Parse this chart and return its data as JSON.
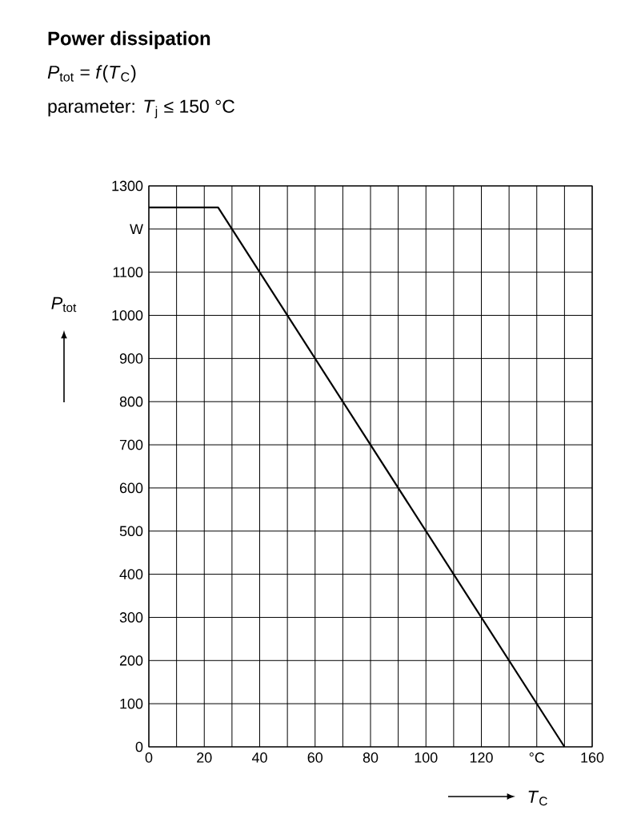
{
  "chart_data": {
    "type": "line",
    "title": "Power dissipation",
    "subtitle": "*P*$_{tot}$ = *f*(*T*$_{C}$)",
    "annotations": [
      "parameter: *T*$_{j}$ ≤ 150 °C"
    ],
    "xlabel": "*T*$_{C}$",
    "ylabel": "*P*$_{tot}$",
    "series": [
      {
        "color": "#000000",
        "x": [
          0,
          25,
          150
        ],
        "values": [
          1250,
          1250,
          0
        ]
      }
    ],
    "xlim": [
      0,
      160
    ],
    "ylim": [
      0,
      1300
    ],
    "xticks": [
      0,
      {
        "value": 10,
        "label": null
      },
      20,
      {
        "value": 30,
        "label": null
      },
      40,
      {
        "value": 50,
        "label": null
      },
      60,
      {
        "value": 70,
        "label": null
      },
      80,
      {
        "value": 90,
        "label": null
      },
      100,
      {
        "value": 110,
        "label": null
      },
      120,
      {
        "value": 130,
        "label": null
      },
      {
        "value": 140,
        "label": "°C"
      },
      {
        "value": 150,
        "label": null
      },
      160
    ],
    "yticks": [
      0,
      100,
      200,
      300,
      400,
      500,
      600,
      700,
      800,
      900,
      1000,
      1100,
      {
        "value": 1200,
        "label": "W"
      },
      1300
    ],
    "grid": true,
    "marker": "none",
    "line_style": "solid"
  }
}
